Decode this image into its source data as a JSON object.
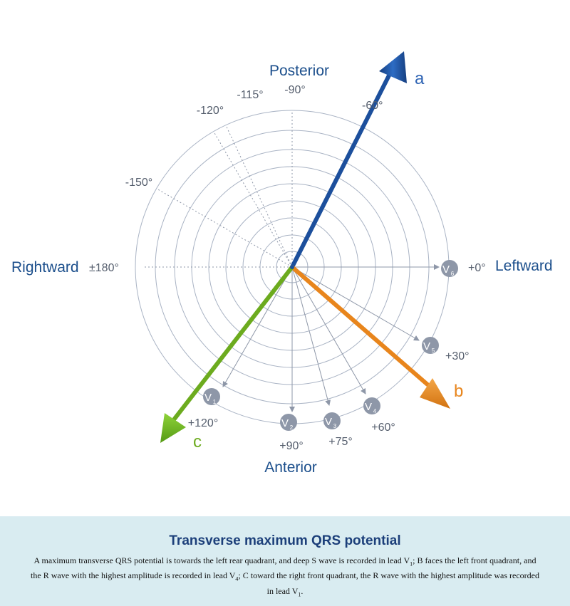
{
  "diagram": {
    "directions": {
      "posterior": "Posterior",
      "anterior": "Anterior",
      "rightward": "Rightward",
      "leftward": "Leftward"
    },
    "angle_labels": {
      "neg90": "-90°",
      "neg60": "-60°",
      "neg115": "-115°",
      "neg120": "-120°",
      "neg150": "-150°",
      "pm180": "±180°",
      "zero": "+0°",
      "pos30": "+30°",
      "pos60": "+60°",
      "pos75": "+75°",
      "pos90": "+90°",
      "pos120": "+120°"
    },
    "leads": {
      "v1": {
        "letter": "V",
        "num": "1"
      },
      "v2": {
        "letter": "V",
        "num": "2"
      },
      "v3": {
        "letter": "V",
        "num": "3"
      },
      "v4": {
        "letter": "V",
        "num": "4"
      },
      "v5": {
        "letter": "V",
        "num": "5"
      },
      "v6": {
        "letter": "V",
        "num": "6"
      }
    },
    "vectors": {
      "a": {
        "label": "a",
        "color": "#1c4f9c"
      },
      "b": {
        "label": "b",
        "color": "#e8851c"
      },
      "c": {
        "label": "c",
        "color": "#6cab1e"
      }
    },
    "colors": {
      "text_blue": "#1c4f8c",
      "grid": "#a9b3c4",
      "lead_marker": "#8e97a8"
    }
  },
  "caption": {
    "title": "Transverse maximum QRS potential",
    "p1": "A maximum transverse QRS potential is towards the left rear quadrant, and deep S wave is recorded in lead V",
    "s1": "1",
    "p2": "; B faces the left front quadrant, and the R wave with the highest amplitude is recorded in lead V",
    "s2": "4",
    "p3": "; C toward the right front quadrant, the R wave with the highest amplitude was recorded in lead V",
    "s3": "1",
    "p4": "."
  }
}
